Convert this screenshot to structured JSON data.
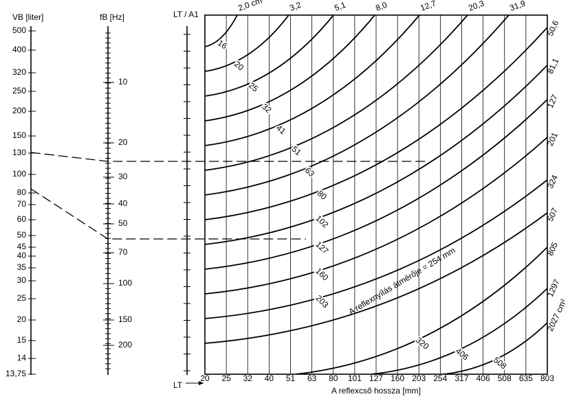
{
  "vb_scale": {
    "title": "VB [liter]",
    "ticks": [
      "500",
      "400",
      "320",
      "250",
      "200",
      "150",
      "130",
      "100",
      "80",
      "70",
      "60",
      "50",
      "45",
      "40",
      "35",
      "30",
      "25",
      "20",
      "15",
      "14",
      "13,75"
    ]
  },
  "fb_scale": {
    "title": "fB [Hz]",
    "ticks": [
      "10",
      "20",
      "30",
      "40",
      "50",
      "70",
      "100",
      "150",
      "200"
    ]
  },
  "lt_scale": {
    "title": "LT / A1",
    "bottom": "LT"
  },
  "curves": [
    {
      "diameter": "16",
      "area": "2,0 cm²"
    },
    {
      "diameter": "20",
      "area": "3,2"
    },
    {
      "diameter": "25",
      "area": "5,1"
    },
    {
      "diameter": "32",
      "area": "8,0"
    },
    {
      "diameter": "41",
      "area": "12,7"
    },
    {
      "diameter": "51",
      "area": "20,3"
    },
    {
      "diameter": "63",
      "area": "31,9"
    },
    {
      "diameter": "80",
      "area": "50,6"
    },
    {
      "diameter": "102",
      "area": "81,1"
    },
    {
      "diameter": "127",
      "area": "127"
    },
    {
      "diameter": "160",
      "area": "201"
    },
    {
      "diameter": "203",
      "area": "324"
    },
    {
      "area": "507"
    },
    {
      "diameter": "320",
      "area": "805"
    },
    {
      "diameter": "406",
      "area": "1297"
    },
    {
      "diameter": "508",
      "area": "2027 cm²"
    }
  ],
  "annotation": "A reflexnyílás átmérője = 254 mm",
  "x_axis": {
    "title": "A reflexcső hossza [mm]",
    "labels": [
      "20",
      "25",
      "32",
      "40",
      "51",
      "63",
      "80",
      "101",
      "127",
      "160",
      "203",
      "254",
      "317",
      "406",
      "508",
      "635",
      "803"
    ]
  }
}
